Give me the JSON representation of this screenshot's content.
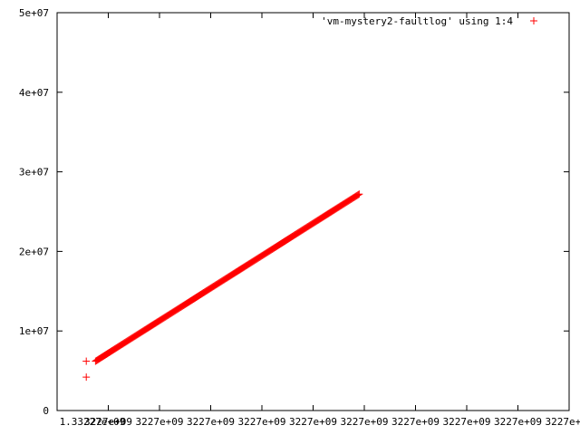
{
  "chart_data": {
    "type": "scatter",
    "legend_position": "top-right",
    "grid": false,
    "series": [
      {
        "name": "'vm-mystery2-faultlog' using 1:4",
        "color": "#ff0000",
        "marker": "plus",
        "segments": [
          {
            "x": [
              0.57,
              0.57
            ],
            "y": [
              4200000,
              6200000
            ]
          },
          {
            "x": [
              0.75,
              5.9
            ],
            "y": [
              6200000,
              27200000
            ]
          }
        ]
      }
    ],
    "x_axis": {
      "range": [
        0,
        10
      ],
      "ticks": [
        0,
        1,
        2,
        3,
        4,
        5,
        6,
        7,
        8,
        9,
        10
      ],
      "tick_labels": [
        "1.33227e+09",
        "3227e+09",
        "3227e+09",
        "3227e+09",
        "3227e+09",
        "3227e+09",
        "3227e+09",
        "3227e+09",
        "3227e+09",
        "3227e+09",
        "3227e+09"
      ]
    },
    "y_axis": {
      "range": [
        0,
        50000000
      ],
      "ticks": [
        0,
        10000000,
        20000000,
        30000000,
        40000000,
        50000000
      ],
      "tick_labels": [
        "0",
        "1e+07",
        "2e+07",
        "3e+07",
        "4e+07",
        "5e+07"
      ]
    }
  }
}
